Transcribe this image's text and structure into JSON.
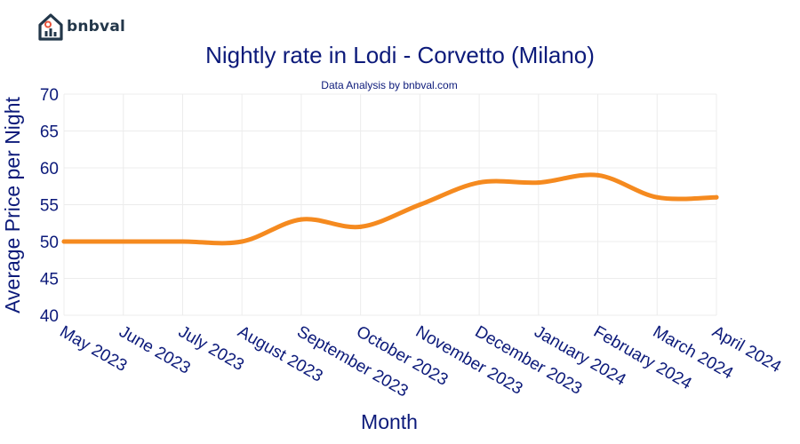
{
  "brand": {
    "name": "bnbval"
  },
  "colors": {
    "line": "#f58a1f",
    "text": "#0c1a7a",
    "grid": "#ececec",
    "logo": "#23374a",
    "logo_accent": "#e8533a"
  },
  "chart_data": {
    "type": "line",
    "title": "Nightly rate in Lodi - Corvetto (Milano)",
    "subtitle": "Data Analysis by bnbval.com",
    "xlabel": "Month",
    "ylabel": "Average Price per Night",
    "ylim": [
      40,
      70
    ],
    "yticks": [
      40,
      45,
      50,
      55,
      60,
      65,
      70
    ],
    "grid": true,
    "categories": [
      "May 2023",
      "June 2023",
      "July 2023",
      "August 2023",
      "September 2023",
      "October 2023",
      "November 2023",
      "December 2023",
      "January 2024",
      "February 2024",
      "March 2024",
      "April 2024"
    ],
    "series": [
      {
        "values": [
          50,
          50,
          50,
          50,
          53,
          52,
          55,
          58,
          58,
          59,
          56,
          56
        ]
      }
    ]
  }
}
